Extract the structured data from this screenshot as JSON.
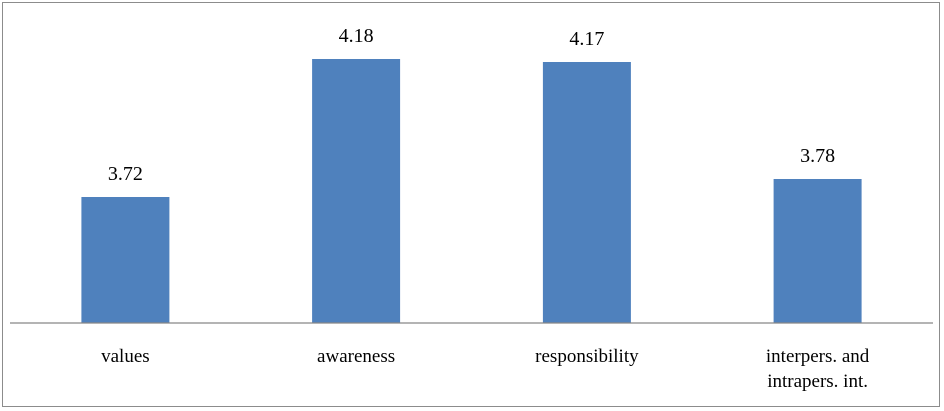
{
  "chart_data": {
    "type": "bar",
    "title": "",
    "xlabel": "",
    "ylabel": "",
    "categories": [
      [
        "values"
      ],
      [
        "awareness"
      ],
      [
        "responsibility"
      ],
      [
        "interpers. and",
        "intrapers. int."
      ]
    ],
    "values": [
      3.72,
      4.18,
      4.17,
      3.78
    ],
    "data_labels": [
      "3.72",
      "4.18",
      "4.17",
      "3.78"
    ],
    "ylim": [
      3.3,
      4.3
    ],
    "y_axis_visible": false,
    "grid": false,
    "legend": "none",
    "bar_color": "#4f81bd",
    "axis_color": "#868686"
  }
}
